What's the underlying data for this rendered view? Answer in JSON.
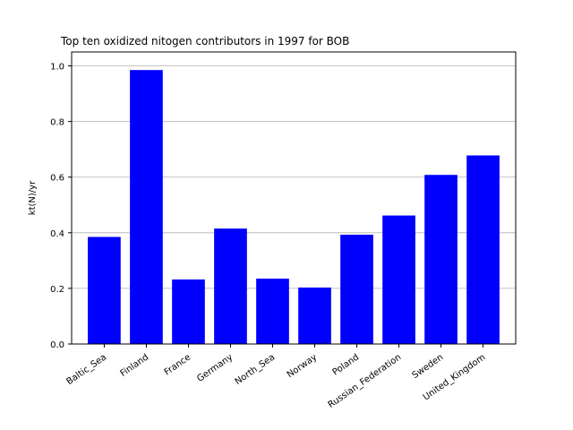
{
  "chart_data": {
    "type": "bar",
    "title": "Top ten oxidized nitogen contributors in 1997 for  BOB",
    "xlabel": "",
    "ylabel": "kt(N)/yr",
    "categories": [
      "Baltic_Sea",
      "Finland",
      "France",
      "Germany",
      "North_Sea",
      "Norway",
      "Poland",
      "Russian_Federation",
      "Sweden",
      "United_Kingdom"
    ],
    "values": [
      0.385,
      0.985,
      0.232,
      0.415,
      0.235,
      0.203,
      0.393,
      0.462,
      0.608,
      0.678
    ],
    "ylim": [
      0,
      1.05
    ],
    "yticks": [
      "0.0",
      "0.2",
      "0.4",
      "0.6",
      "0.8",
      "1.0"
    ],
    "grid": "y",
    "colors": {
      "bar": "#0000ff",
      "grid": "#b0b0b0",
      "axis": "#000000"
    }
  }
}
